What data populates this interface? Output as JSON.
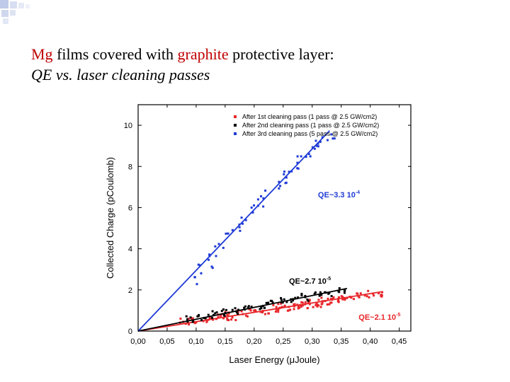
{
  "title": {
    "part1_red": "Mg",
    "part2": " films covered with ",
    "part3_red": "graphite",
    "part4": " protective layer:",
    "subtitle": "QE vs. laser cleaning passes"
  },
  "chart_data": {
    "type": "scatter",
    "xlabel": "Laser Energy (μJoule)",
    "ylabel": "Collected Charge (pCoulomb)",
    "xlim": [
      0.0,
      0.47
    ],
    "ylim": [
      0.0,
      11.0
    ],
    "x_ticks": [
      "0,00",
      "0,05",
      "0,10",
      "0,15",
      "0,20",
      "0,25",
      "0,30",
      "0,35",
      "0,40",
      "0,45"
    ],
    "x_tick_values": [
      0.0,
      0.05,
      0.1,
      0.15,
      0.2,
      0.25,
      0.3,
      0.35,
      0.4,
      0.45
    ],
    "y_ticks": [
      "0",
      "2",
      "4",
      "6",
      "8",
      "10"
    ],
    "y_tick_values": [
      0,
      2,
      4,
      6,
      8,
      10
    ],
    "legend_position": "top-right",
    "series": [
      {
        "name": "After 1st cleaning pass (1 pass @ 2.5 GW/cm2)",
        "color": "#e8262a",
        "slope": 4.55,
        "fit_range": [
          0.0,
          0.42
        ],
        "points": [
          [
            0.08,
            0.45
          ],
          [
            0.1,
            0.5
          ],
          [
            0.12,
            0.6
          ],
          [
            0.14,
            0.7
          ],
          [
            0.15,
            0.75
          ],
          [
            0.16,
            0.6
          ],
          [
            0.18,
            0.85
          ],
          [
            0.2,
            0.9
          ],
          [
            0.22,
            1.0
          ],
          [
            0.24,
            1.1
          ],
          [
            0.25,
            1.2
          ],
          [
            0.26,
            1.05
          ],
          [
            0.27,
            1.15
          ],
          [
            0.28,
            1.3
          ],
          [
            0.29,
            1.25
          ],
          [
            0.3,
            1.35
          ],
          [
            0.31,
            1.3
          ],
          [
            0.32,
            1.45
          ],
          [
            0.33,
            1.4
          ],
          [
            0.34,
            1.5
          ],
          [
            0.35,
            1.55
          ],
          [
            0.36,
            1.6
          ],
          [
            0.38,
            1.7
          ],
          [
            0.4,
            1.8
          ],
          [
            0.42,
            1.85
          ]
        ]
      },
      {
        "name": "After 2nd cleaning pass (1 pass @ 2.5 GW/cm2)",
        "color": "#000000",
        "slope": 5.75,
        "fit_range": [
          0.0,
          0.36
        ],
        "points": [
          [
            0.09,
            0.6
          ],
          [
            0.11,
            0.7
          ],
          [
            0.13,
            0.8
          ],
          [
            0.15,
            0.9
          ],
          [
            0.17,
            1.0
          ],
          [
            0.19,
            1.1
          ],
          [
            0.21,
            1.2
          ],
          [
            0.23,
            1.35
          ],
          [
            0.25,
            1.45
          ],
          [
            0.27,
            1.55
          ],
          [
            0.29,
            1.65
          ],
          [
            0.31,
            1.75
          ],
          [
            0.33,
            1.85
          ],
          [
            0.35,
            2.0
          ]
        ]
      },
      {
        "name": "After 3rd cleaning pass (5 pass @ 2.5 GW/cm2)",
        "color": "#1f3bd6",
        "slope": 29.5,
        "fit_range": [
          0.0,
          0.33
        ],
        "points": [
          [
            0.1,
            2.5
          ],
          [
            0.11,
            3.0
          ],
          [
            0.12,
            3.3
          ],
          [
            0.13,
            3.8
          ],
          [
            0.14,
            4.2
          ],
          [
            0.16,
            4.7
          ],
          [
            0.17,
            5.0
          ],
          [
            0.18,
            5.3
          ],
          [
            0.2,
            5.9
          ],
          [
            0.21,
            6.2
          ],
          [
            0.22,
            6.6
          ],
          [
            0.24,
            7.1
          ],
          [
            0.25,
            7.4
          ],
          [
            0.26,
            7.8
          ],
          [
            0.27,
            8.0
          ],
          [
            0.28,
            8.3
          ],
          [
            0.29,
            8.6
          ],
          [
            0.3,
            8.9
          ],
          [
            0.31,
            9.2
          ],
          [
            0.32,
            9.4
          ],
          [
            0.33,
            9.6
          ]
        ]
      }
    ],
    "annotations": [
      {
        "text": "QE~3.3 10",
        "sup": "-4",
        "color": "#1f3bd6",
        "x": 0.31,
        "y": 6.5
      },
      {
        "text": "QE~2.7 10",
        "sup": "-5",
        "color": "#000000",
        "x": 0.26,
        "y": 2.3
      },
      {
        "text": "QE~2.1 10",
        "sup": "-5",
        "color": "#e8262a",
        "x": 0.38,
        "y": 0.55
      }
    ]
  }
}
